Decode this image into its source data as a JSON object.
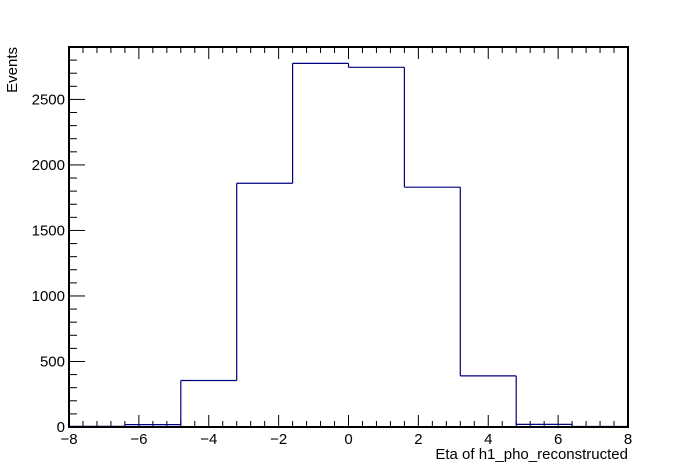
{
  "chart_data": {
    "type": "histogram",
    "xlabel": "Eta of h1_pho_reconstructed",
    "ylabel": "Events",
    "xlim": [
      -8,
      8
    ],
    "ylim": [
      0,
      2900
    ],
    "bin_edges": [
      -8,
      -6.4,
      -4.8,
      -3.2,
      -1.6,
      0,
      1.6,
      3.2,
      4.8,
      6.4,
      8
    ],
    "values": [
      5,
      18,
      355,
      1860,
      2775,
      2745,
      1830,
      390,
      20,
      4
    ],
    "x_ticks": [
      -8,
      -6,
      -4,
      -2,
      0,
      2,
      4,
      6,
      8
    ],
    "x_tick_labels": [
      "−8",
      "−6",
      "−4",
      "−2",
      "0",
      "2",
      "4",
      "6",
      "8"
    ],
    "y_ticks": [
      0,
      500,
      1000,
      1500,
      2000,
      2500
    ],
    "y_tick_labels": [
      "0",
      "500",
      "1000",
      "1500",
      "2000",
      "2500"
    ],
    "line_color": "#000080",
    "frame_color": "#000000",
    "grid": false
  }
}
